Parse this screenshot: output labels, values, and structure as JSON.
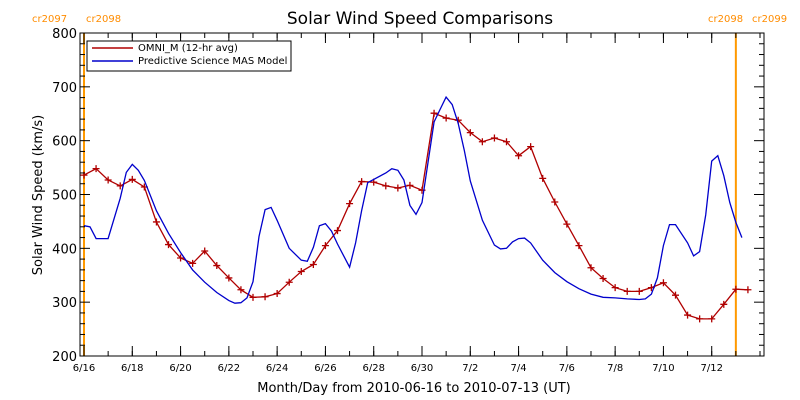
{
  "chart_data": {
    "type": "line",
    "title": "Solar Wind Speed Comparisons",
    "xlabel": "Month/Day from 2010-06-16 to 2010-07-13 (UT)",
    "ylabel": "Solar Wind Speed (km/s)",
    "xlim": [
      "2010-06-16",
      "2010-07-14"
    ],
    "ylim": [
      200,
      800
    ],
    "y_ticks": [
      200,
      300,
      400,
      500,
      600,
      700,
      800
    ],
    "x_ticks": [
      {
        "date": "2010-06-16",
        "label": "6/16"
      },
      {
        "date": "2010-06-18",
        "label": "6/18"
      },
      {
        "date": "2010-06-20",
        "label": "6/20"
      },
      {
        "date": "2010-06-22",
        "label": "6/22"
      },
      {
        "date": "2010-06-24",
        "label": "6/24"
      },
      {
        "date": "2010-06-26",
        "label": "6/26"
      },
      {
        "date": "2010-06-28",
        "label": "6/28"
      },
      {
        "date": "2010-06-30",
        "label": "6/30"
      },
      {
        "date": "2010-07-02",
        "label": "7/2"
      },
      {
        "date": "2010-07-04",
        "label": "7/4"
      },
      {
        "date": "2010-07-06",
        "label": "7/6"
      },
      {
        "date": "2010-07-08",
        "label": "7/8"
      },
      {
        "date": "2010-07-10",
        "label": "7/10"
      },
      {
        "date": "2010-07-12",
        "label": "7/12"
      }
    ],
    "legend_position": "top-left",
    "carrington_markers": [
      {
        "date": "2010-06-16",
        "left_label": "cr2097",
        "right_label": "cr2098",
        "label_side": "left",
        "color": "#ff9900"
      },
      {
        "date": "2010-07-13",
        "left_label": "cr2098",
        "right_label": "cr2099",
        "label_side": "right",
        "color": "#ff9900"
      }
    ],
    "series": [
      {
        "name": "OMNI_M (12-hr avg)",
        "color": "#b00000",
        "markers": true,
        "points": [
          [
            "2010-06-16 00:00",
            536
          ],
          [
            "2010-06-16 12:00",
            548
          ],
          [
            "2010-06-17 00:00",
            527
          ],
          [
            "2010-06-17 12:00",
            516
          ],
          [
            "2010-06-18 00:00",
            528
          ],
          [
            "2010-06-18 12:00",
            514
          ],
          [
            "2010-06-19 00:00",
            449
          ],
          [
            "2010-06-19 12:00",
            407
          ],
          [
            "2010-06-20 00:00",
            382
          ],
          [
            "2010-06-20 12:00",
            372
          ],
          [
            "2010-06-21 00:00",
            395
          ],
          [
            "2010-06-21 12:00",
            368
          ],
          [
            "2010-06-22 00:00",
            345
          ],
          [
            "2010-06-22 12:00",
            323
          ],
          [
            "2010-06-23 00:00",
            309
          ],
          [
            "2010-06-23 12:00",
            310
          ],
          [
            "2010-06-24 00:00",
            316
          ],
          [
            "2010-06-24 12:00",
            337
          ],
          [
            "2010-06-25 00:00",
            357
          ],
          [
            "2010-06-25 12:00",
            370
          ],
          [
            "2010-06-26 00:00",
            405
          ],
          [
            "2010-06-26 12:00",
            433
          ],
          [
            "2010-06-27 00:00",
            483
          ],
          [
            "2010-06-27 12:00",
            524
          ],
          [
            "2010-06-28 00:00",
            523
          ],
          [
            "2010-06-28 12:00",
            516
          ],
          [
            "2010-06-29 00:00",
            512
          ],
          [
            "2010-06-29 12:00",
            517
          ],
          [
            "2010-06-30 00:00",
            508
          ],
          [
            "2010-06-30 12:00",
            651
          ],
          [
            "2010-07-01 00:00",
            642
          ],
          [
            "2010-07-01 12:00",
            638
          ],
          [
            "2010-07-02 00:00",
            615
          ],
          [
            "2010-07-02 12:00",
            598
          ],
          [
            "2010-07-03 00:00",
            605
          ],
          [
            "2010-07-03 12:00",
            598
          ],
          [
            "2010-07-04 00:00",
            572
          ],
          [
            "2010-07-04 12:00",
            589
          ],
          [
            "2010-07-05 00:00",
            530
          ],
          [
            "2010-07-05 12:00",
            486
          ],
          [
            "2010-07-06 00:00",
            445
          ],
          [
            "2010-07-06 12:00",
            405
          ],
          [
            "2010-07-07 00:00",
            364
          ],
          [
            "2010-07-07 12:00",
            344
          ],
          [
            "2010-07-08 00:00",
            327
          ],
          [
            "2010-07-08 12:00",
            320
          ],
          [
            "2010-07-09 00:00",
            320
          ],
          [
            "2010-07-09 12:00",
            327
          ],
          [
            "2010-07-10 00:00",
            336
          ],
          [
            "2010-07-10 12:00",
            313
          ],
          [
            "2010-07-11 00:00",
            276
          ],
          [
            "2010-07-11 12:00",
            269
          ],
          [
            "2010-07-12 00:00",
            269
          ],
          [
            "2010-07-12 12:00",
            296
          ],
          [
            "2010-07-13 00:00",
            324
          ],
          [
            "2010-07-13 12:00",
            323
          ]
        ]
      },
      {
        "name": "Predictive Science MAS Model",
        "color": "#0000cc",
        "markers": false,
        "points": [
          [
            "2010-06-16 00:00",
            442
          ],
          [
            "2010-06-16 06:00",
            440
          ],
          [
            "2010-06-16 12:00",
            418
          ],
          [
            "2010-06-17 00:00",
            418
          ],
          [
            "2010-06-17 12:00",
            493
          ],
          [
            "2010-06-17 18:00",
            541
          ],
          [
            "2010-06-18 00:00",
            556
          ],
          [
            "2010-06-18 06:00",
            545
          ],
          [
            "2010-06-18 12:00",
            526
          ],
          [
            "2010-06-19 00:00",
            470
          ],
          [
            "2010-06-19 12:00",
            428
          ],
          [
            "2010-06-20 00:00",
            392
          ],
          [
            "2010-06-20 12:00",
            360
          ],
          [
            "2010-06-21 00:00",
            337
          ],
          [
            "2010-06-21 12:00",
            318
          ],
          [
            "2010-06-22 00:00",
            303
          ],
          [
            "2010-06-22 06:00",
            298
          ],
          [
            "2010-06-22 12:00",
            299
          ],
          [
            "2010-06-22 18:00",
            308
          ],
          [
            "2010-06-23 00:00",
            338
          ],
          [
            "2010-06-23 06:00",
            422
          ],
          [
            "2010-06-23 12:00",
            472
          ],
          [
            "2010-06-23 18:00",
            476
          ],
          [
            "2010-06-24 00:00",
            452
          ],
          [
            "2010-06-24 12:00",
            400
          ],
          [
            "2010-06-25 00:00",
            378
          ],
          [
            "2010-06-25 06:00",
            376
          ],
          [
            "2010-06-25 12:00",
            402
          ],
          [
            "2010-06-25 18:00",
            442
          ],
          [
            "2010-06-26 00:00",
            446
          ],
          [
            "2010-06-26 06:00",
            432
          ],
          [
            "2010-06-26 12:00",
            408
          ],
          [
            "2010-06-27 00:00",
            365
          ],
          [
            "2010-06-27 06:00",
            410
          ],
          [
            "2010-06-27 12:00",
            470
          ],
          [
            "2010-06-27 18:00",
            522
          ],
          [
            "2010-06-28 00:00",
            528
          ],
          [
            "2010-06-28 12:00",
            540
          ],
          [
            "2010-06-28 18:00",
            548
          ],
          [
            "2010-06-29 00:00",
            545
          ],
          [
            "2010-06-29 06:00",
            527
          ],
          [
            "2010-06-29 12:00",
            480
          ],
          [
            "2010-06-29 18:00",
            463
          ],
          [
            "2010-06-30 00:00",
            485
          ],
          [
            "2010-06-30 12:00",
            635
          ],
          [
            "2010-06-30 18:00",
            658
          ],
          [
            "2010-07-01 00:00",
            681
          ],
          [
            "2010-07-01 06:00",
            667
          ],
          [
            "2010-07-01 12:00",
            632
          ],
          [
            "2010-07-01 18:00",
            582
          ],
          [
            "2010-07-02 00:00",
            525
          ],
          [
            "2010-07-02 12:00",
            452
          ],
          [
            "2010-07-03 00:00",
            406
          ],
          [
            "2010-07-03 06:00",
            399
          ],
          [
            "2010-07-03 12:00",
            400
          ],
          [
            "2010-07-03 18:00",
            412
          ],
          [
            "2010-07-04 00:00",
            418
          ],
          [
            "2010-07-04 06:00",
            419
          ],
          [
            "2010-07-04 12:00",
            410
          ],
          [
            "2010-07-05 00:00",
            378
          ],
          [
            "2010-07-05 12:00",
            355
          ],
          [
            "2010-07-06 00:00",
            338
          ],
          [
            "2010-07-06 12:00",
            325
          ],
          [
            "2010-07-07 00:00",
            315
          ],
          [
            "2010-07-07 12:00",
            309
          ],
          [
            "2010-07-08 00:00",
            308
          ],
          [
            "2010-07-08 12:00",
            306
          ],
          [
            "2010-07-09 00:00",
            305
          ],
          [
            "2010-07-09 06:00",
            306
          ],
          [
            "2010-07-09 12:00",
            315
          ],
          [
            "2010-07-09 18:00",
            345
          ],
          [
            "2010-07-10 00:00",
            405
          ],
          [
            "2010-07-10 06:00",
            444
          ],
          [
            "2010-07-10 12:00",
            444
          ],
          [
            "2010-07-11 00:00",
            410
          ],
          [
            "2010-07-11 06:00",
            386
          ],
          [
            "2010-07-11 12:00",
            394
          ],
          [
            "2010-07-11 18:00",
            462
          ],
          [
            "2010-07-12 00:00",
            562
          ],
          [
            "2010-07-12 06:00",
            572
          ],
          [
            "2010-07-12 12:00",
            535
          ],
          [
            "2010-07-12 18:00",
            485
          ],
          [
            "2010-07-13 00:00",
            448
          ],
          [
            "2010-07-13 06:00",
            420
          ]
        ]
      }
    ]
  }
}
